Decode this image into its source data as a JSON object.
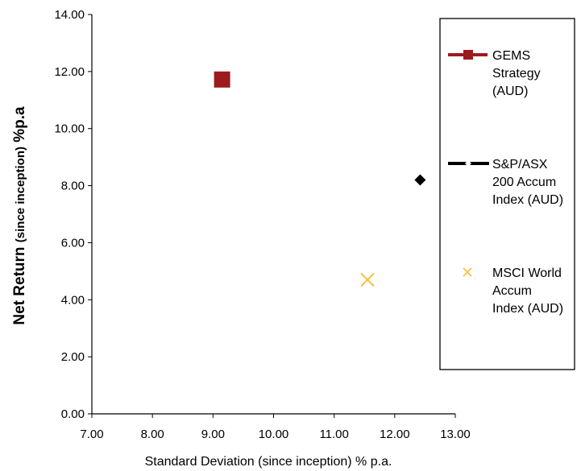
{
  "chart_data": {
    "type": "scatter",
    "xlabel": "Standard Deviation (since inception) % p.a.",
    "ylabel_main": "Net Return ",
    "ylabel_paren": "(since inception)",
    "ylabel_tail": " %p.a",
    "xlim": [
      7,
      13
    ],
    "ylim": [
      0,
      14
    ],
    "x_ticks": [
      "7.00",
      "8.00",
      "9.00",
      "10.00",
      "11.00",
      "12.00",
      "13.00"
    ],
    "y_ticks": [
      "0.00",
      "2.00",
      "4.00",
      "6.00",
      "8.00",
      "10.00",
      "12.00",
      "14.00"
    ],
    "grid": false,
    "legend_position": "right",
    "series": [
      {
        "name": "GEMS Strategy (AUD)",
        "legend_lines": [
          "GEMS",
          "Strategy",
          "(AUD)"
        ],
        "marker": "square",
        "color": "#9b1b1e",
        "points": [
          {
            "x": 9.15,
            "y": 11.72
          }
        ]
      },
      {
        "name": "S&P/ASX 200 Accum Index (AUD)",
        "legend_lines": [
          "S&P/ASX",
          "200 Accum",
          "Index (AUD)"
        ],
        "marker": "diamond",
        "color": "#000000",
        "points": [
          {
            "x": 12.42,
            "y": 8.2
          }
        ]
      },
      {
        "name": "MSCI World Accum Index (AUD)",
        "legend_lines": [
          "MSCI World",
          "Accum",
          "Index (AUD)"
        ],
        "marker": "x",
        "color": "#f5c242",
        "points": [
          {
            "x": 11.55,
            "y": 4.7
          }
        ]
      }
    ]
  }
}
